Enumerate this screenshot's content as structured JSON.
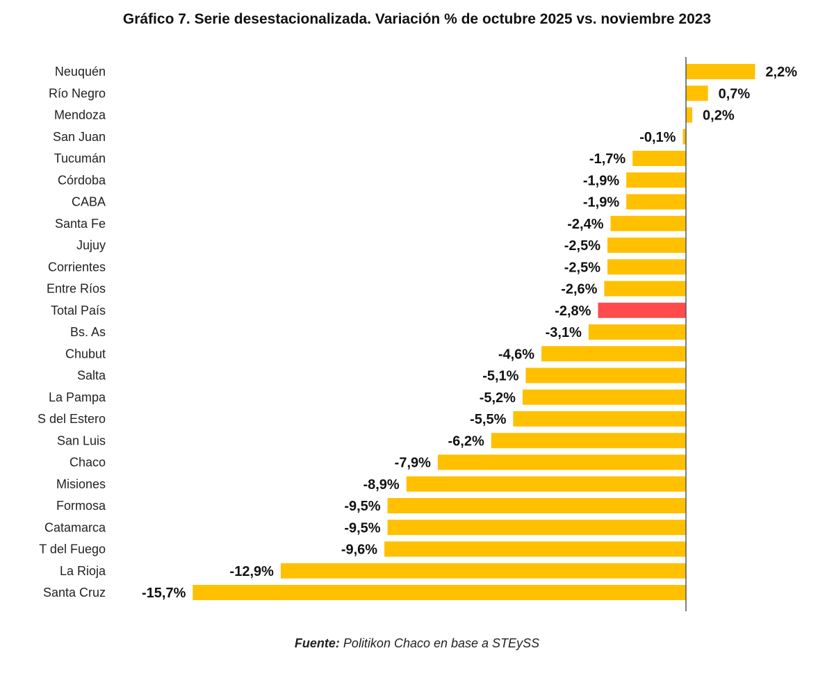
{
  "chart_data": {
    "type": "bar",
    "orientation": "horizontal",
    "title": "Gráfico 7. Serie desestacionalizada. Variación % de octubre 2025 vs. noviembre 2023",
    "categories": [
      "Neuquén",
      "Río Negro",
      "Mendoza",
      "San Juan",
      "Tucumán",
      "Córdoba",
      "CABA",
      "Santa Fe",
      "Jujuy",
      "Corrientes",
      "Entre Ríos",
      "Total País",
      "Bs. As",
      "Chubut",
      "Salta",
      "La Pampa",
      "S del Estero",
      "San Luis",
      "Chaco",
      "Misiones",
      "Formosa",
      "Catamarca",
      "T del Fuego",
      "La Rioja",
      "Santa Cruz"
    ],
    "values": [
      2.2,
      0.7,
      0.2,
      -0.1,
      -1.7,
      -1.9,
      -1.9,
      -2.4,
      -2.5,
      -2.5,
      -2.6,
      -2.8,
      -3.1,
      -4.6,
      -5.1,
      -5.2,
      -5.5,
      -6.2,
      -7.9,
      -8.9,
      -9.5,
      -9.5,
      -9.6,
      -12.9,
      -15.7
    ],
    "data_labels": [
      "2,2%",
      "0,7%",
      "0,2%",
      "-0,1%",
      "-1,7%",
      "-1,9%",
      "-1,9%",
      "-2,4%",
      "-2,5%",
      "-2,5%",
      "-2,6%",
      "-2,8%",
      "-3,1%",
      "-4,6%",
      "-5,1%",
      "-5,2%",
      "-5,5%",
      "-6,2%",
      "-7,9%",
      "-8,9%",
      "-9,5%",
      "-9,5%",
      "-9,6%",
      "-12,9%",
      "-15,7%"
    ],
    "highlight": "Total País",
    "colors": {
      "bar": "#FFC000",
      "highlight": "#FF4B4B",
      "axis": "#555555"
    },
    "xlim": [
      -15.7,
      2.2
    ],
    "grid": false,
    "legend": "none",
    "source_label": "Fuente:",
    "source_text": "Politikon Chaco en base a STEySS"
  }
}
